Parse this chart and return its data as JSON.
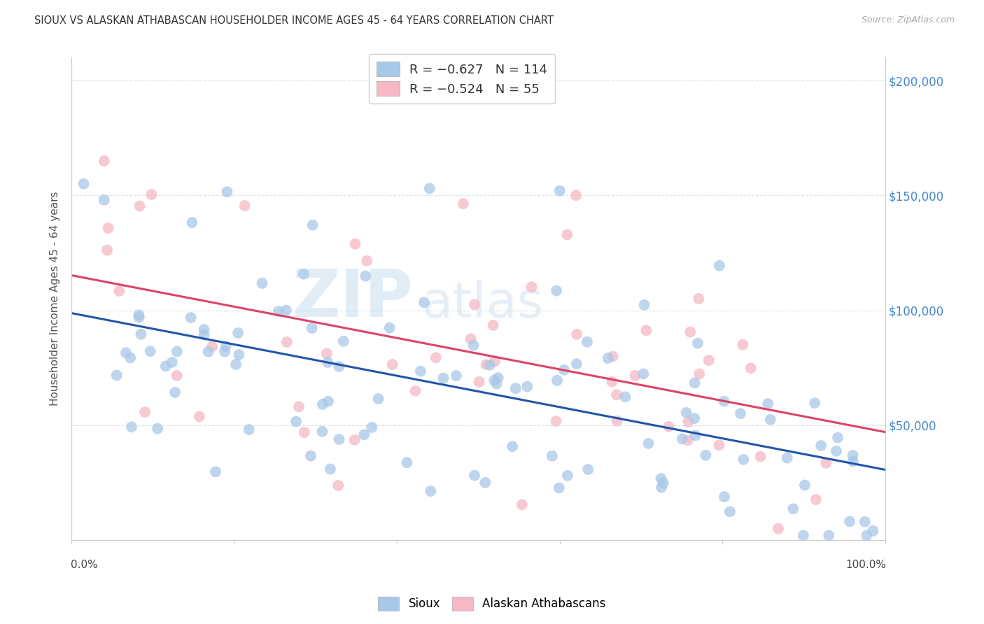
{
  "title": "SIOUX VS ALASKAN ATHABASCAN HOUSEHOLDER INCOME AGES 45 - 64 YEARS CORRELATION CHART",
  "source": "Source: ZipAtlas.com",
  "ylabel": "Householder Income Ages 45 - 64 years",
  "ytick_labels": [
    "",
    "$50,000",
    "$100,000",
    "$150,000",
    "$200,000"
  ],
  "ytick_values": [
    0,
    50000,
    100000,
    150000,
    200000
  ],
  "ylim": [
    0,
    210000
  ],
  "xlim": [
    0.0,
    1.0
  ],
  "sioux_color": "#a8c8e8",
  "alaska_color": "#f5b8c4",
  "sioux_line_color": "#2255aa",
  "alaska_line_color": "#dd4466",
  "ytick_color": "#4488cc",
  "background_color": "#ffffff",
  "grid_color": "#dddddd",
  "watermark_zip": "ZIP",
  "watermark_atlas": "atlas",
  "sioux_intercept": 95000,
  "sioux_slope": -65000,
  "alaska_intercept": 100000,
  "alaska_slope": -50000
}
